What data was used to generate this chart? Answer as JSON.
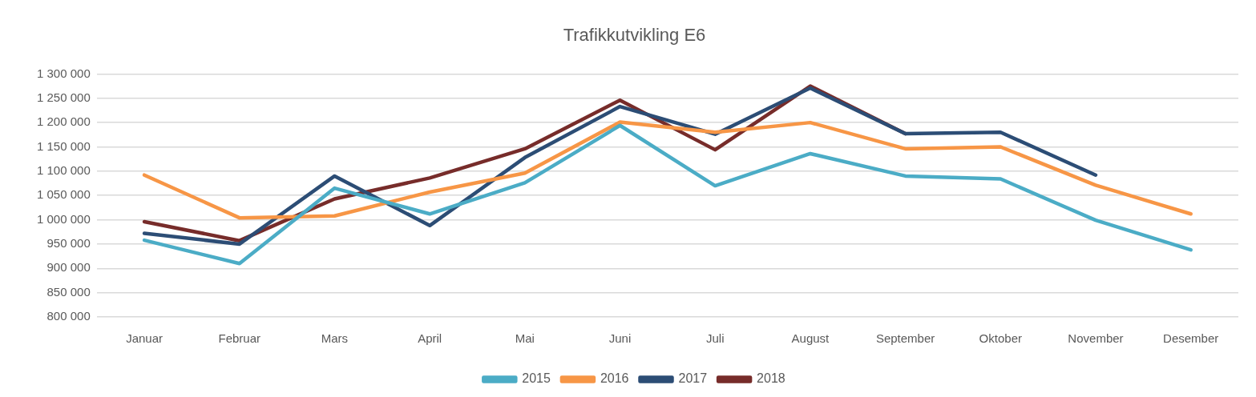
{
  "chart_data": {
    "type": "line",
    "title": "Trafikkutvikling E6",
    "categories": [
      "Januar",
      "Februar",
      "Mars",
      "April",
      "Mai",
      "Juni",
      "Juli",
      "August",
      "September",
      "Oktober",
      "November",
      "Desember"
    ],
    "series": [
      {
        "name": "2015",
        "color": "#4bacc6",
        "values": [
          958000,
          910000,
          1065000,
          1012000,
          1076000,
          1194000,
          1070000,
          1136000,
          1090000,
          1084000,
          999000,
          938000
        ]
      },
      {
        "name": "2016",
        "color": "#f79646",
        "values": [
          1092000,
          1004000,
          1008000,
          1057000,
          1096000,
          1201000,
          1180000,
          1200000,
          1146000,
          1150000,
          1071000,
          1012000
        ]
      },
      {
        "name": "2017",
        "color": "#2c4d75",
        "values": [
          972000,
          950000,
          1090000,
          988000,
          1128000,
          1233000,
          1176000,
          1271000,
          1177000,
          1180000,
          1092000,
          null
        ]
      },
      {
        "name": "2018",
        "color": "#772c2a",
        "values": [
          996000,
          957000,
          1043000,
          1086000,
          1146000,
          1246000,
          1144000,
          1275000,
          1177000,
          null,
          null,
          null
        ]
      }
    ],
    "ylim": [
      800000,
      1300000
    ],
    "yticks": [
      {
        "value": 800000,
        "label": "800 000"
      },
      {
        "value": 850000,
        "label": "850 000"
      },
      {
        "value": 900000,
        "label": "900 000"
      },
      {
        "value": 950000,
        "label": "950 000"
      },
      {
        "value": 1000000,
        "label": "1 000 000"
      },
      {
        "value": 1050000,
        "label": "1 050 000"
      },
      {
        "value": 1100000,
        "label": "1 100 000"
      },
      {
        "value": 1150000,
        "label": "1 150 000"
      },
      {
        "value": 1200000,
        "label": "1 200 000"
      },
      {
        "value": 1250000,
        "label": "1 250 000"
      },
      {
        "value": 1300000,
        "label": "1 300 000"
      }
    ],
    "grid": "y",
    "legend": "bottom",
    "marker": "none",
    "line_style": "solid"
  }
}
